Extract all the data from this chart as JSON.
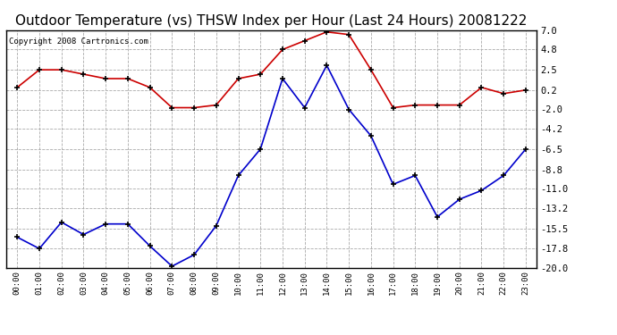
{
  "title": "Outdoor Temperature (vs) THSW Index per Hour (Last 24 Hours) 20081222",
  "copyright": "Copyright 2008 Cartronics.com",
  "hours": [
    "00:00",
    "01:00",
    "02:00",
    "03:00",
    "04:00",
    "05:00",
    "06:00",
    "07:00",
    "08:00",
    "09:00",
    "10:00",
    "11:00",
    "12:00",
    "13:00",
    "14:00",
    "15:00",
    "16:00",
    "17:00",
    "18:00",
    "19:00",
    "20:00",
    "21:00",
    "22:00",
    "23:00"
  ],
  "red_data": [
    0.5,
    2.5,
    2.5,
    2.0,
    1.5,
    1.5,
    0.5,
    -1.8,
    -1.8,
    -1.5,
    1.5,
    2.0,
    4.8,
    5.8,
    6.8,
    6.5,
    2.5,
    -1.8,
    -1.5,
    -1.5,
    -1.5,
    0.5,
    -0.2,
    0.2
  ],
  "blue_data": [
    -16.5,
    -17.8,
    -14.8,
    -16.2,
    -15.0,
    -15.0,
    -17.5,
    -19.8,
    -18.5,
    -15.2,
    -9.5,
    -6.5,
    1.5,
    -1.8,
    3.0,
    -2.0,
    -5.0,
    -10.5,
    -9.5,
    -14.2,
    -12.2,
    -11.2,
    -9.5,
    -6.5
  ],
  "ylim": [
    -20.0,
    7.0
  ],
  "yticks": [
    -20.0,
    -17.8,
    -15.5,
    -13.2,
    -11.0,
    -8.8,
    -6.5,
    -4.2,
    -2.0,
    0.2,
    2.5,
    4.8,
    7.0
  ],
  "ytick_labels": [
    "-20.0",
    "-17.8",
    "-15.5",
    "-13.2",
    "-11.0",
    "-8.8",
    "-6.5",
    "-4.2",
    "-2.0",
    "0.2",
    "2.5",
    "4.8",
    "7.0"
  ],
  "red_color": "#cc0000",
  "blue_color": "#0000cc",
  "grid_color": "#aaaaaa",
  "bg_color": "#ffffff",
  "title_fontsize": 11,
  "copyright_fontsize": 6.5
}
